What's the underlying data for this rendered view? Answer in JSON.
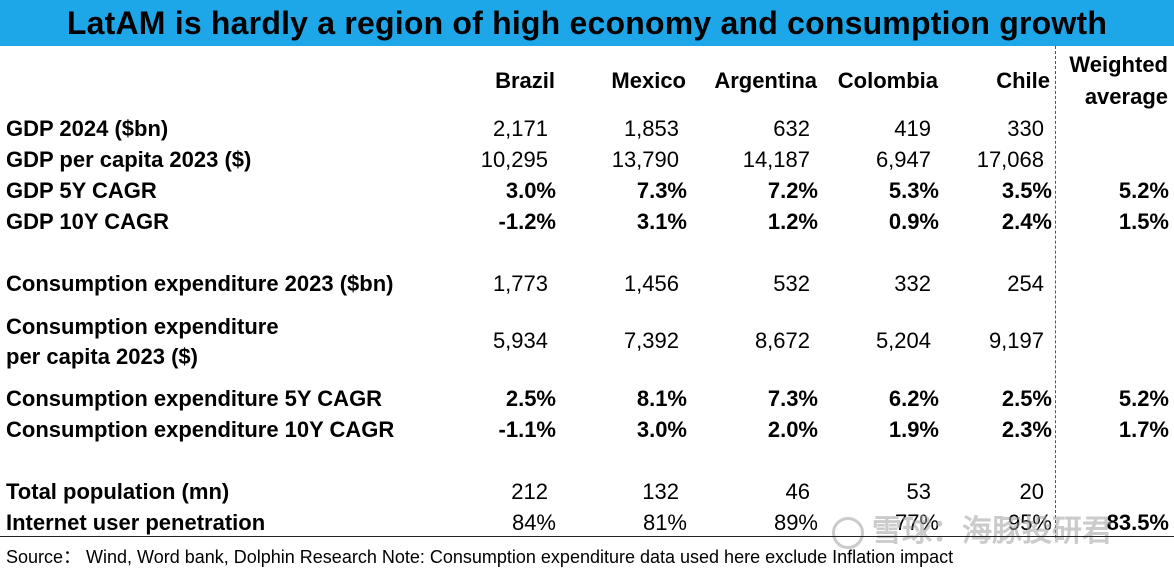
{
  "title": "LatAM is hardly a region of high economy and consumption growth",
  "columns": [
    "Brazil",
    "Mexico",
    "Argentina",
    "Colombia",
    "Chile"
  ],
  "weighted_header": [
    "Weighted",
    "average"
  ],
  "rows": [
    {
      "label": "GDP 2024 ($bn)",
      "values": [
        "2,171",
        "1,853",
        "632",
        "419",
        "330"
      ],
      "weighted": ""
    },
    {
      "label": "GDP per capita 2023 ($)",
      "values": [
        "10,295",
        "13,790",
        "14,187",
        "6,947",
        "17,068"
      ],
      "weighted": ""
    },
    {
      "label": "GDP 5Y CAGR",
      "values": [
        "3.0%",
        "7.3%",
        "7.2%",
        "5.3%",
        "3.5%"
      ],
      "weighted": "5.2%"
    },
    {
      "label": "GDP 10Y CAGR",
      "values": [
        "-1.2%",
        "3.1%",
        "1.2%",
        "0.9%",
        "2.4%"
      ],
      "weighted": "1.5%"
    },
    {
      "label": "Consumption expenditure 2023 ($bn)",
      "values": [
        "1,773",
        "1,456",
        "532",
        "332",
        "254"
      ],
      "weighted": ""
    },
    {
      "label": "Consumption expenditure",
      "label2": "per capita 2023 ($)",
      "values": [
        "5,934",
        "7,392",
        "8,672",
        "5,204",
        "9,197"
      ],
      "weighted": ""
    },
    {
      "label": "Consumption expenditure 5Y CAGR",
      "values": [
        "2.5%",
        "8.1%",
        "7.3%",
        "6.2%",
        "2.5%"
      ],
      "weighted": "5.2%"
    },
    {
      "label": "Consumption expenditure 10Y CAGR",
      "values": [
        "-1.1%",
        "3.0%",
        "2.0%",
        "1.9%",
        "2.3%"
      ],
      "weighted": "1.7%"
    },
    {
      "label": "Total population (mn)",
      "values": [
        "212",
        "132",
        "46",
        "53",
        "20"
      ],
      "weighted": ""
    },
    {
      "label": "Internet user penetration",
      "values": [
        "84%",
        "81%",
        "89%",
        "77%",
        "95%"
      ],
      "weighted": "83.5%"
    }
  ],
  "source": "Source：  Wind, Word bank, Dolphin Research Note: Consumption expenditure data used here exclude Inflation impact",
  "watermark": "雪球：海豚投研君"
}
